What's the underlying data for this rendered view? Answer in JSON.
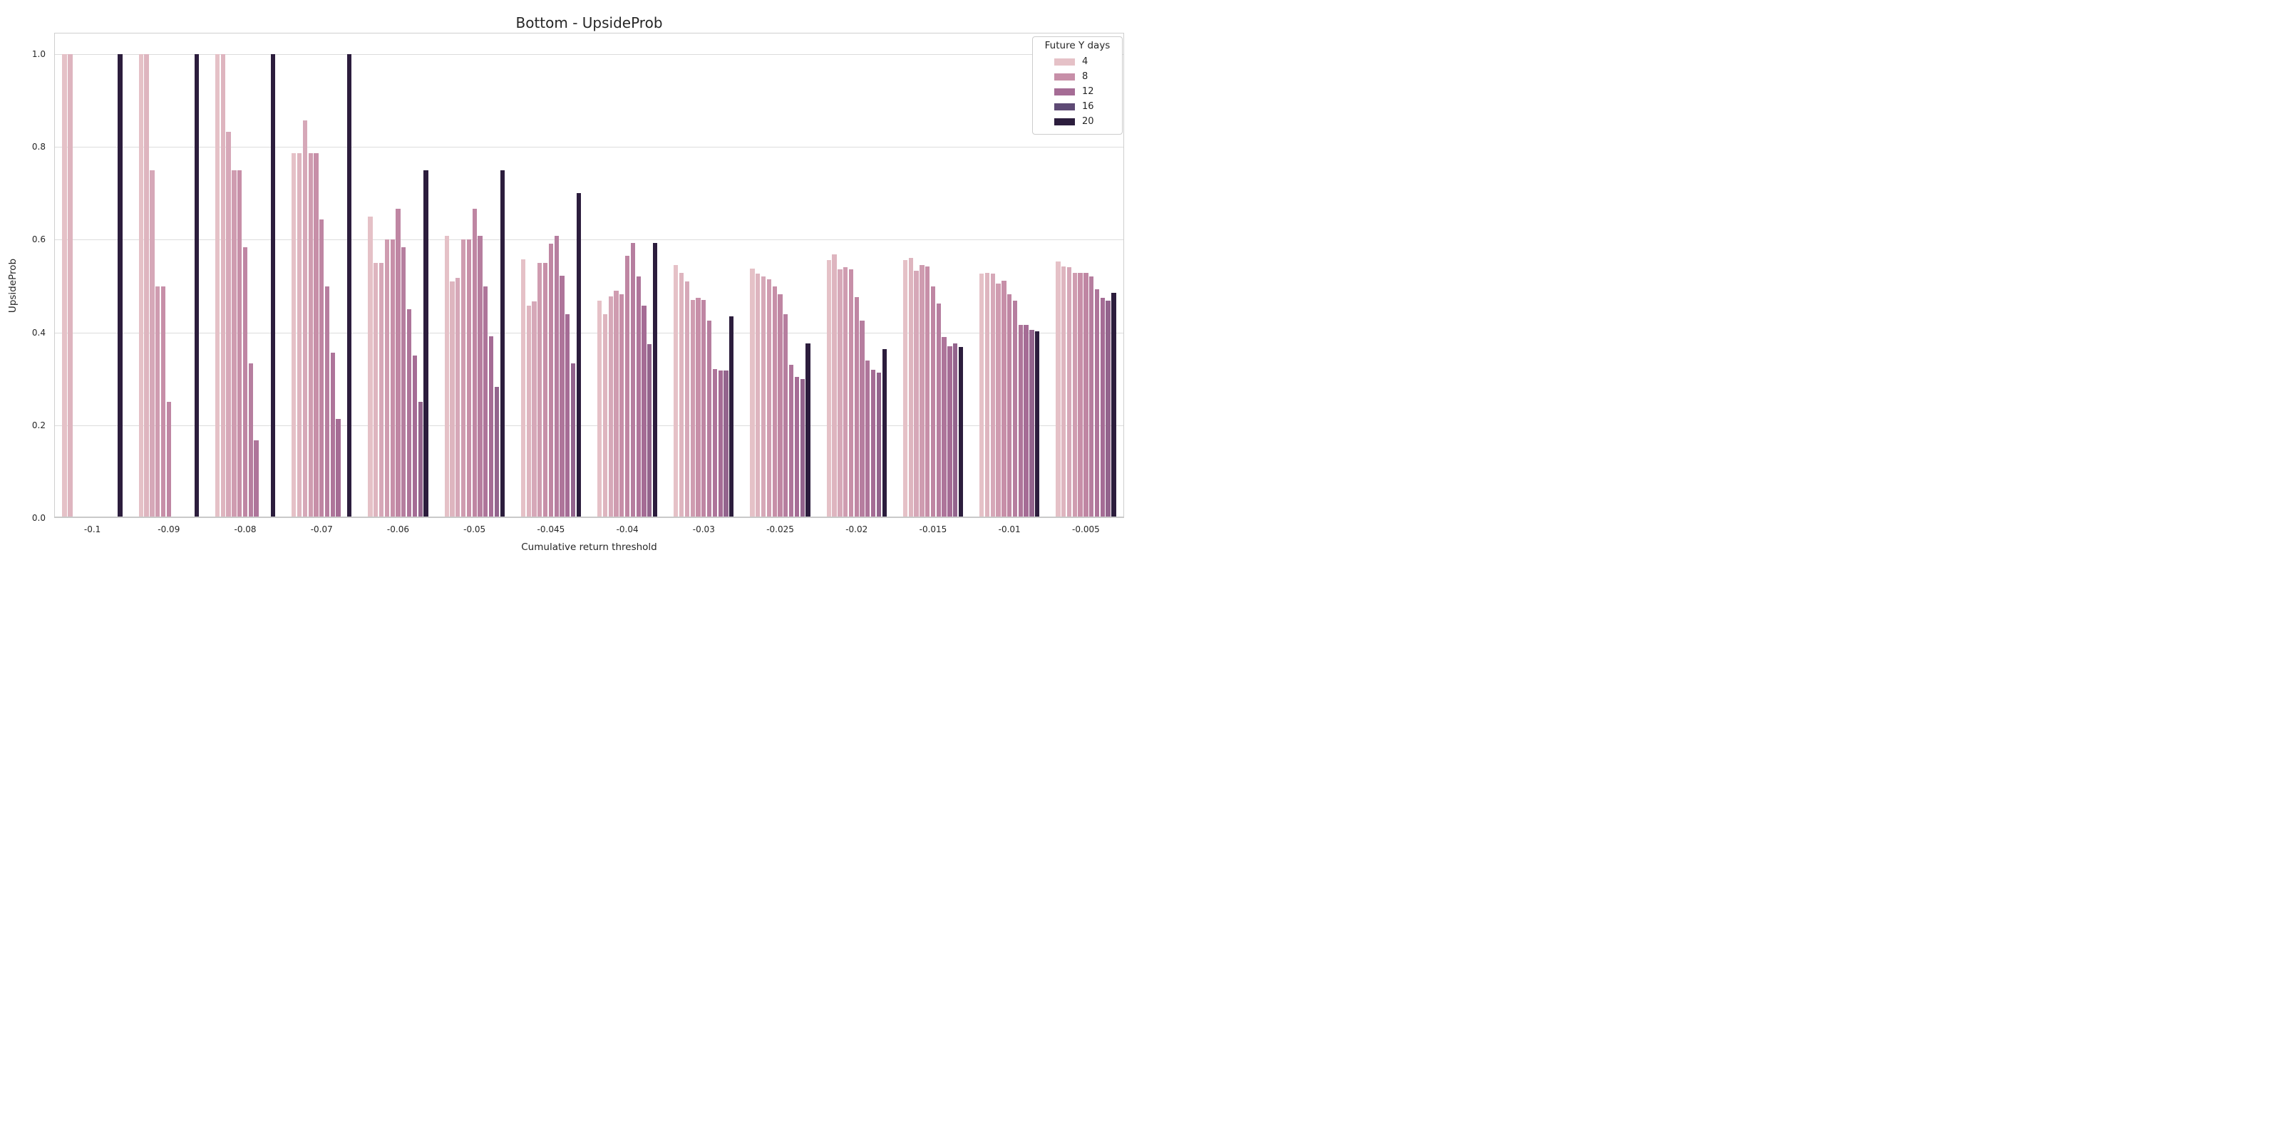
{
  "title": "Bottom - UpsideProb",
  "axes": {
    "xlabel": "Cumulative return threshold",
    "ylabel": "UpsideProb",
    "ytick_labels": [
      "0.0",
      "0.2",
      "0.4",
      "0.6",
      "0.8",
      "1.0"
    ],
    "ytick_values": [
      0.0,
      0.2,
      0.4,
      0.6,
      0.8,
      1.0
    ],
    "ylim": [
      0.0,
      1.046
    ],
    "grid": "horizontal"
  },
  "legend": {
    "title": "Future Y days",
    "entries": [
      {
        "label": "4",
        "level": 4
      },
      {
        "label": "8",
        "level": 8
      },
      {
        "label": "12",
        "level": 12
      },
      {
        "label": "16",
        "level": 16
      },
      {
        "label": "20",
        "level": 20
      }
    ],
    "position": "upper right"
  },
  "palette_stops": [
    {
      "level": 4,
      "color": "#e5c1c7"
    },
    {
      "level": 8,
      "color": "#c78fa8"
    },
    {
      "level": 12,
      "color": "#a56c95"
    },
    {
      "level": 16,
      "color": "#5e4a75"
    },
    {
      "level": 20,
      "color": "#2c1d3d"
    }
  ],
  "chart_data": {
    "type": "bar",
    "title": "Bottom - UpsideProb",
    "xlabel": "Cumulative return threshold",
    "ylabel": "UpsideProb",
    "ylim": [
      0,
      1.046
    ],
    "legend_position": "upper right",
    "categories": [
      "-0.1",
      "-0.09",
      "-0.08",
      "-0.07",
      "-0.06",
      "-0.05",
      "-0.045",
      "-0.04",
      "-0.03",
      "-0.025",
      "-0.02",
      "-0.015",
      "-0.01",
      "-0.005"
    ],
    "hue_levels": [
      4,
      5,
      6,
      7,
      8,
      9,
      10,
      11,
      12,
      13,
      20
    ],
    "series": [
      {
        "name": "4",
        "level": 4,
        "values": [
          1.0,
          1.0,
          1.0,
          0.786,
          0.65,
          0.609,
          0.558,
          0.468,
          0.545,
          0.538,
          0.556,
          0.556,
          0.527,
          0.553
        ]
      },
      {
        "name": "5",
        "level": 5,
        "values": [
          1.0,
          1.0,
          1.0,
          0.786,
          0.55,
          0.51,
          0.458,
          0.44,
          0.528,
          0.527,
          0.568,
          0.561,
          0.529,
          0.543
        ]
      },
      {
        "name": "6",
        "level": 6,
        "values": [
          null,
          0.75,
          0.833,
          0.857,
          0.55,
          0.517,
          0.467,
          0.478,
          0.51,
          0.52,
          0.536,
          0.533,
          0.527,
          0.54
        ]
      },
      {
        "name": "7",
        "level": 7,
        "values": [
          null,
          0.5,
          0.75,
          0.786,
          0.6,
          0.6,
          0.55,
          0.49,
          0.47,
          0.514,
          0.54,
          0.545,
          0.506,
          0.528
        ]
      },
      {
        "name": "8",
        "level": 8,
        "values": [
          null,
          0.5,
          0.75,
          0.786,
          0.6,
          0.6,
          0.55,
          0.483,
          0.474,
          0.5,
          0.536,
          0.542,
          0.512,
          0.529
        ]
      },
      {
        "name": "9",
        "level": 9,
        "values": [
          null,
          0.25,
          0.583,
          0.643,
          0.667,
          0.667,
          0.591,
          0.565,
          0.47,
          0.483,
          0.476,
          0.5,
          0.483,
          0.529
        ]
      },
      {
        "name": "10",
        "level": 10,
        "values": [
          null,
          null,
          0.333,
          0.5,
          0.583,
          0.609,
          0.609,
          0.593,
          0.426,
          0.44,
          0.426,
          0.462,
          0.468,
          0.52
        ]
      },
      {
        "name": "11",
        "level": 11,
        "values": [
          null,
          null,
          0.167,
          0.357,
          0.45,
          0.5,
          0.522,
          0.52,
          0.321,
          0.33,
          0.34,
          0.39,
          0.417,
          0.493
        ]
      },
      {
        "name": "12",
        "level": 12,
        "values": [
          null,
          null,
          null,
          0.214,
          0.35,
          0.391,
          0.44,
          0.458,
          0.318,
          0.304,
          0.32,
          0.37,
          0.417,
          0.475
        ]
      },
      {
        "name": "13",
        "level": 13,
        "values": [
          null,
          null,
          null,
          null,
          0.25,
          0.283,
          0.333,
          0.375,
          0.318,
          0.3,
          0.314,
          0.377,
          0.405,
          0.468
        ]
      },
      {
        "name": "20",
        "level": 20,
        "values": [
          1.0,
          1.0,
          1.0,
          1.0,
          0.75,
          0.75,
          0.7,
          0.593,
          0.435,
          0.377,
          0.364,
          0.368,
          0.403,
          0.485
        ]
      }
    ]
  }
}
